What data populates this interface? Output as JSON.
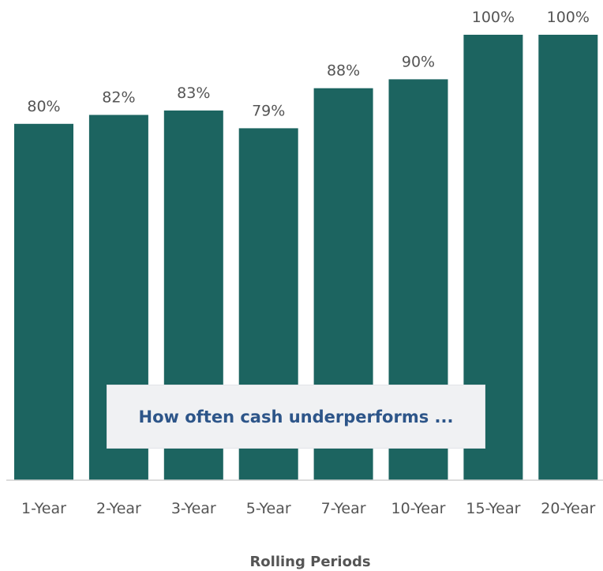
{
  "chart_data": {
    "type": "bar",
    "categories": [
      "1-Year",
      "2-Year",
      "3-Year",
      "5-Year",
      "7-Year",
      "10-Year",
      "15-Year",
      "20-Year"
    ],
    "values": [
      80,
      82,
      83,
      79,
      88,
      90,
      100,
      100
    ],
    "data_labels": [
      "80%",
      "82%",
      "83%",
      "79%",
      "88%",
      "90%",
      "100%",
      "100%"
    ],
    "title": "",
    "xlabel": "Rolling Periods",
    "ylabel": "",
    "ylim": [
      0,
      100
    ],
    "grid": false,
    "legend": "none",
    "bar_color": "#1c6460",
    "annotation": "How often cash underperforms ..."
  }
}
